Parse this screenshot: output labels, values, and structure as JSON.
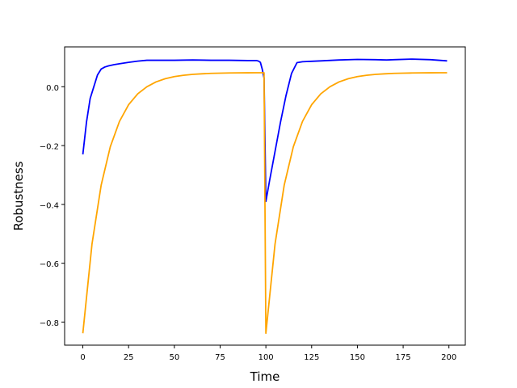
{
  "chart_data": {
    "type": "line",
    "title": "",
    "xlabel": "Time",
    "ylabel": "Robustness",
    "xlim": [
      -9.95,
      208.95
    ],
    "ylim": [
      -0.8785,
      0.1355
    ],
    "xticks": [
      0,
      25,
      50,
      75,
      100,
      125,
      150,
      175,
      200
    ],
    "xtick_labels": [
      "0",
      "25",
      "50",
      "75",
      "100",
      "125",
      "150",
      "175",
      "200"
    ],
    "yticks": [
      -0.8,
      -0.6,
      -0.4,
      -0.2,
      0.0
    ],
    "ytick_labels": [
      "−0.8",
      "−0.6",
      "−0.4",
      "−0.2",
      "0.0"
    ],
    "grid": false,
    "legend": "none",
    "series": [
      {
        "color": "#0000ff",
        "x": [
          0,
          2,
          4,
          6,
          8,
          10,
          12,
          14,
          17,
          20,
          25,
          30,
          35,
          40,
          50,
          60,
          70,
          80,
          90,
          95,
          96,
          97,
          98,
          99,
          100,
          102,
          105,
          108,
          111,
          114,
          117,
          120,
          130,
          140,
          150,
          160,
          166,
          170,
          180,
          190,
          199
        ],
        "y": [
          -0.23,
          -0.12,
          -0.04,
          0.0,
          0.04,
          0.06,
          0.067,
          0.071,
          0.075,
          0.078,
          0.083,
          0.087,
          0.09,
          0.09,
          0.09,
          0.091,
          0.09,
          0.09,
          0.089,
          0.089,
          0.087,
          0.083,
          0.06,
          0.03,
          -0.39,
          -0.32,
          -0.22,
          -0.12,
          -0.03,
          0.045,
          0.082,
          0.085,
          0.088,
          0.091,
          0.093,
          0.092,
          0.091,
          0.092,
          0.094,
          0.092,
          0.088
        ]
      },
      {
        "color": "#ffa500",
        "x": [
          0,
          5,
          10,
          15,
          20,
          25,
          30,
          35,
          40,
          45,
          50,
          55,
          60,
          65,
          70,
          75,
          80,
          85,
          90,
          95,
          99,
          99.5,
          100,
          105,
          110,
          115,
          120,
          125,
          130,
          135,
          140,
          145,
          150,
          155,
          160,
          165,
          170,
          175,
          180,
          185,
          190,
          195,
          199
        ],
        "y": [
          -0.838,
          -0.535,
          -0.335,
          -0.204,
          -0.118,
          -0.061,
          -0.024,
          0.0,
          0.0165,
          0.0273,
          0.0344,
          0.039,
          0.042,
          0.044,
          0.0455,
          0.0462,
          0.0468,
          0.0472,
          0.0474,
          0.0476,
          0.0476,
          -0.4,
          -0.838,
          -0.535,
          -0.335,
          -0.204,
          -0.118,
          -0.061,
          -0.024,
          0.0,
          0.0165,
          0.0273,
          0.0344,
          0.039,
          0.042,
          0.044,
          0.0455,
          0.0462,
          0.0468,
          0.0472,
          0.0474,
          0.0476,
          0.0476
        ]
      }
    ]
  }
}
